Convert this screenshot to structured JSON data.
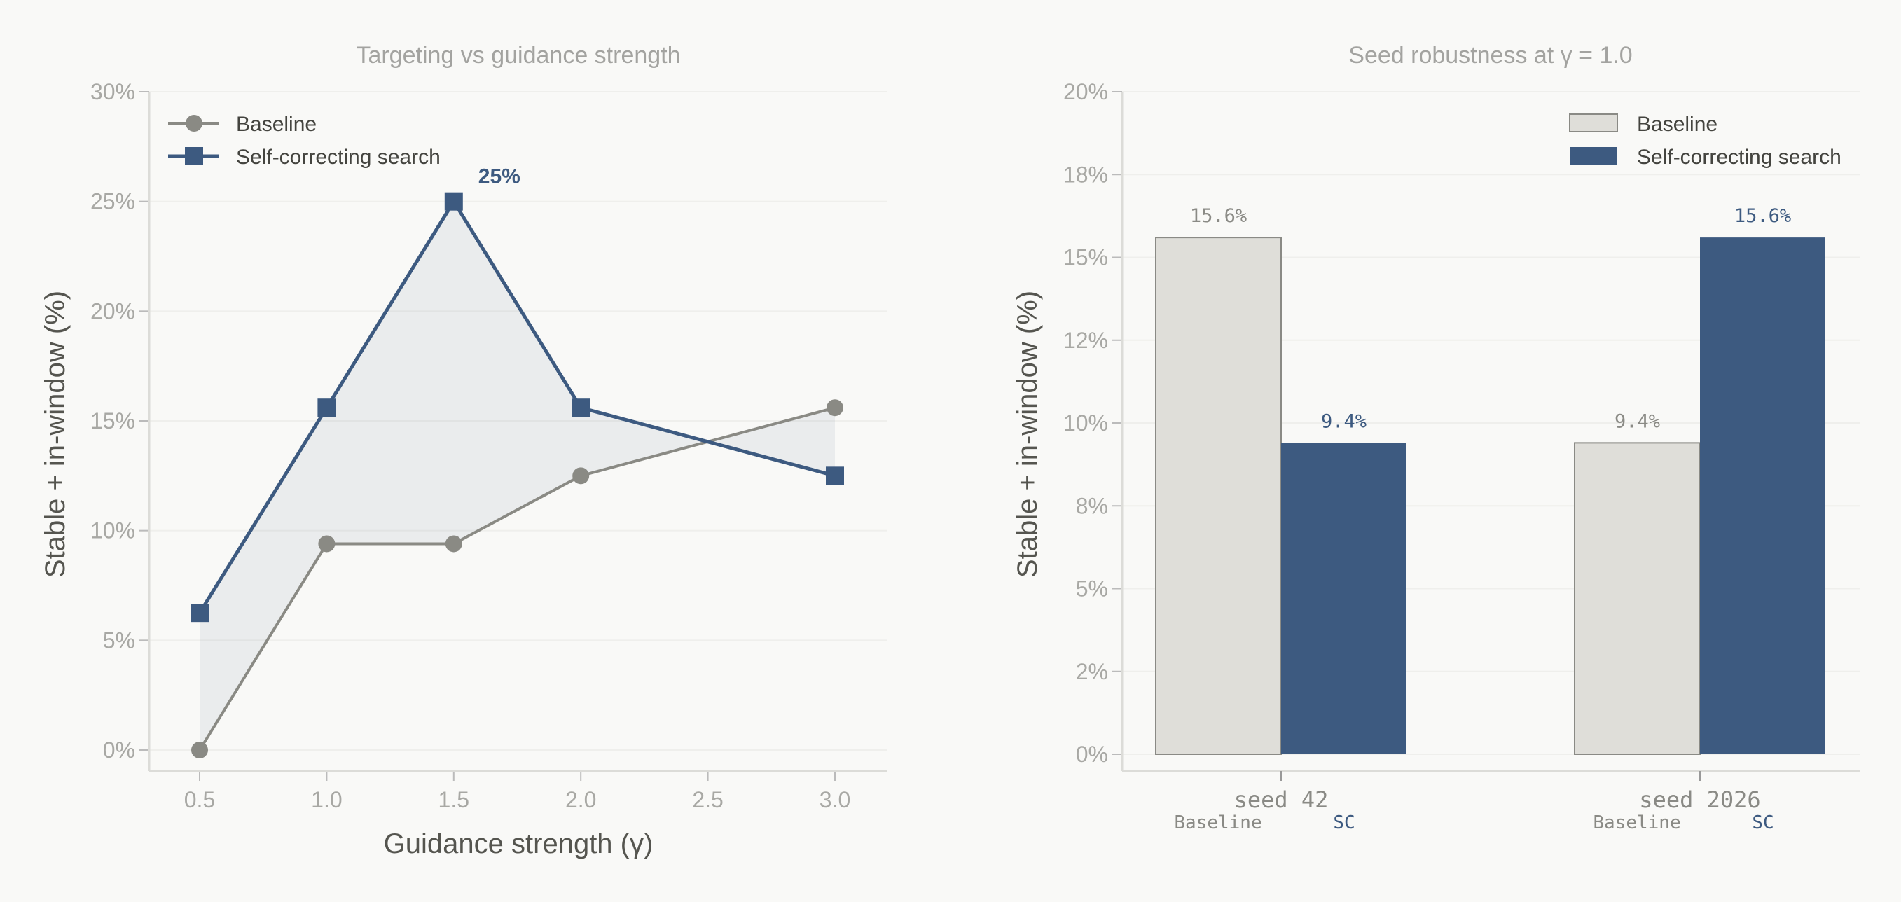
{
  "colors": {
    "baseline_line": "#8a8a84",
    "sc": "#3d5a80",
    "baseline_bar": "#dfded9",
    "baseline_bar_edge": "#8a8a85",
    "grid": "#efefec",
    "background": "#f9f9f7"
  },
  "chart_data": [
    {
      "type": "line",
      "title": "Targeting vs guidance strength",
      "xlabel": "Guidance strength (γ)",
      "ylabel": "Stable + in-window (%)",
      "x": [
        0.5,
        1.0,
        1.5,
        2.0,
        3.0
      ],
      "xticks": [
        "0.5",
        "1.0",
        "1.5",
        "2.0",
        "2.5",
        "3.0"
      ],
      "xtick_values": [
        0.5,
        1.0,
        1.5,
        2.0,
        2.5,
        3.0
      ],
      "xlim": [
        0.3,
        3.2
      ],
      "ylim": [
        -1,
        30
      ],
      "yticks": [
        "0%",
        "5%",
        "10%",
        "15%",
        "20%",
        "25%",
        "30%"
      ],
      "ytick_values": [
        0,
        5,
        10,
        15,
        20,
        25,
        30
      ],
      "grid": true,
      "legend": "top-left",
      "series": [
        {
          "name": "Baseline",
          "marker": "circle",
          "values": [
            0,
            9.4,
            9.4,
            12.5,
            15.6
          ]
        },
        {
          "name": "Self-correcting search",
          "marker": "square",
          "values": [
            6.25,
            15.6,
            25,
            15.6,
            12.5
          ]
        }
      ],
      "fill_between": true,
      "annotation": {
        "text": "25%",
        "x": 1.5,
        "y": 25
      }
    },
    {
      "type": "bar",
      "title": "Seed robustness at γ = 1.0",
      "ylabel": "Stable + in-window (%)",
      "categories": [
        "seed 42",
        "seed 2026"
      ],
      "sublabels": [
        "Baseline",
        "SC"
      ],
      "ylim": [
        -1.6,
        20
      ],
      "yticks": [
        "0%",
        "2%",
        "5%",
        "8%",
        "10%",
        "12%",
        "15%",
        "18%",
        "20%"
      ],
      "ytick_values": [
        0,
        2.5,
        5,
        7.5,
        10,
        12.5,
        15,
        17.5,
        20
      ],
      "grid": true,
      "legend": "top-right",
      "series": [
        {
          "name": "Baseline",
          "values": [
            15.6,
            9.4
          ],
          "labels": [
            "15.6%",
            "9.4%"
          ]
        },
        {
          "name": "Self-correcting search",
          "values": [
            9.4,
            15.6
          ],
          "labels": [
            "9.4%",
            "15.6%"
          ]
        }
      ]
    }
  ]
}
